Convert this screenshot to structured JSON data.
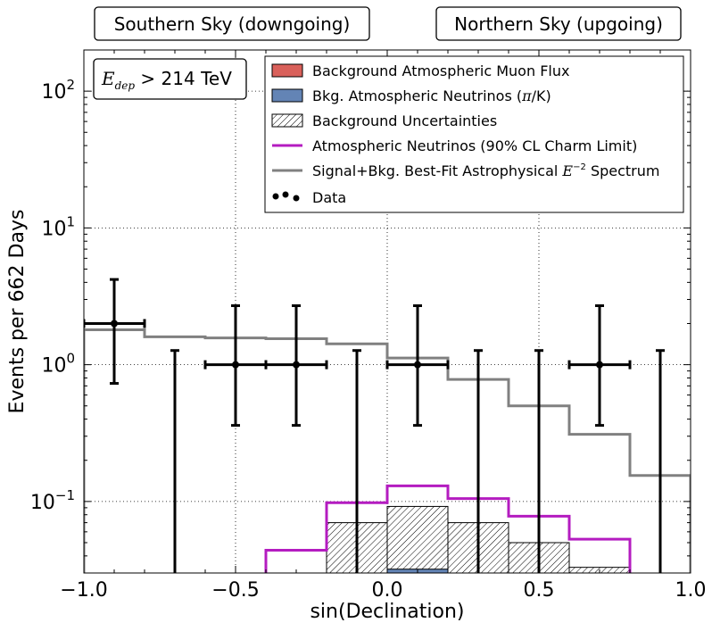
{
  "chart_data": {
    "type": "line",
    "xlabel": "sin(Declination)",
    "ylabel": "Events per 662 Days",
    "xlim": [
      -1.0,
      1.0
    ],
    "ylim": [
      0.03,
      200
    ],
    "yscale": "log",
    "grid": true,
    "x_ticks": [
      -1.0,
      -0.5,
      0.0,
      0.5,
      1.0
    ],
    "x_tick_labels": [
      "−1.0",
      "−0.5",
      "0.0",
      "0.5",
      "1.0"
    ],
    "y_ticks": [
      0.1,
      1,
      10,
      100
    ],
    "y_tick_labels": [
      {
        "base": "10",
        "exp": "−1"
      },
      {
        "base": "10",
        "exp": "0"
      },
      {
        "base": "10",
        "exp": "1"
      },
      {
        "base": "10",
        "exp": "2"
      }
    ],
    "region_labels": {
      "south": "Southern Sky (downgoing)",
      "north": "Northern Sky (upgoing)"
    },
    "cut_label": {
      "var": "E",
      "sub": "dep",
      "text": " > 214 TeV"
    },
    "legend_position": "top-right",
    "legend": [
      {
        "key": "muon",
        "label": "Background Atmospheric Muon Flux"
      },
      {
        "key": "nu",
        "label_pre": "Bkg. Atmospheric Neutrinos (",
        "label_math": "π",
        "label_post": "/K)"
      },
      {
        "key": "unc",
        "label": "Background Uncertainties"
      },
      {
        "key": "charm",
        "label": "Atmospheric Neutrinos (90% CL Charm Limit)"
      },
      {
        "key": "signal",
        "label_pre": "Signal+Bkg. Best-Fit Astrophysical ",
        "label_math": "E",
        "label_sup": "−2",
        "label_post": " Spectrum"
      },
      {
        "key": "data",
        "label": "Data"
      }
    ],
    "colors": {
      "muon": "#d9605a",
      "nu": "#6384b5",
      "charm": "#b41cc0",
      "signal": "#808080",
      "data": "#000000"
    },
    "bin_edges": [
      -1.0,
      -0.8,
      -0.6,
      -0.4,
      -0.2,
      0.0,
      0.2,
      0.4,
      0.6,
      0.8,
      1.0
    ],
    "series": [
      {
        "name": "Signal+Bkg. Best-Fit Astrophysical E⁻² Spectrum",
        "key": "signal",
        "values": [
          1.8,
          1.6,
          1.57,
          1.55,
          1.42,
          1.12,
          0.78,
          0.5,
          0.31,
          0.155
        ]
      },
      {
        "name": "Atmospheric Neutrinos (90% CL Charm Limit)",
        "key": "charm",
        "values": [
          0.0,
          0.0,
          0.0,
          0.044,
          0.098,
          0.13,
          0.105,
          0.078,
          0.053,
          0.0
        ]
      },
      {
        "name": "Background Uncertainties",
        "key": "unc",
        "values": [
          0.0,
          0.0,
          0.0,
          0.0,
          0.07,
          0.092,
          0.07,
          0.05,
          0.033,
          0.0
        ]
      },
      {
        "name": "Bkg. Atmospheric Neutrinos (π/K)",
        "key": "nu",
        "values": [
          0.0,
          0.0,
          0.0,
          0.0,
          0.0,
          0.032,
          0.0,
          0.0,
          0.0,
          0.0
        ]
      }
    ],
    "data_points": [
      {
        "x": -0.9,
        "y": 2,
        "xerr": 0.1,
        "ylow": 0.73,
        "yhigh": 4.2
      },
      {
        "x": -0.5,
        "y": 1,
        "xerr": 0.1,
        "ylow": 0.36,
        "yhigh": 2.7
      },
      {
        "x": -0.3,
        "y": 1,
        "xerr": 0.1,
        "ylow": 0.36,
        "yhigh": 2.7
      },
      {
        "x": 0.1,
        "y": 1,
        "xerr": 0.1,
        "ylow": 0.36,
        "yhigh": 2.7
      },
      {
        "x": 0.7,
        "y": 1,
        "xerr": 0.1,
        "ylow": 0.36,
        "yhigh": 2.7
      }
    ],
    "upper_limits": [
      {
        "x": -0.7,
        "yhigh": 1.27
      },
      {
        "x": -0.1,
        "yhigh": 1.27
      },
      {
        "x": 0.3,
        "yhigh": 1.27
      },
      {
        "x": 0.5,
        "yhigh": 1.27
      },
      {
        "x": 0.9,
        "yhigh": 1.27
      }
    ]
  }
}
